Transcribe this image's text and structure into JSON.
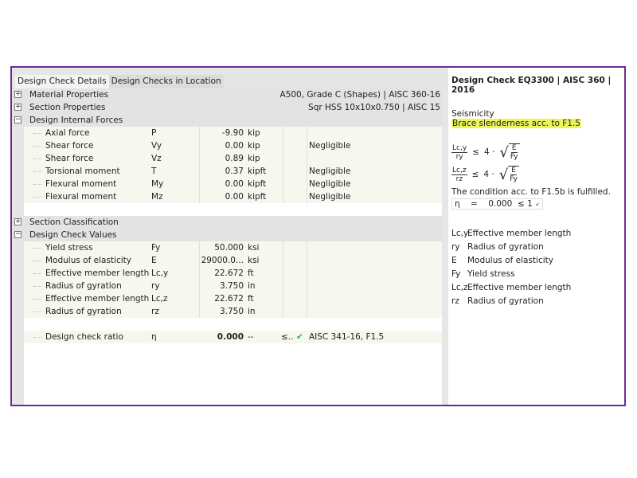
{
  "tabs": [
    "Design Check Details",
    "Design Checks in Location"
  ],
  "groups": {
    "material": {
      "label": "Material Properties",
      "value": "A500, Grade C (Shapes) | AISC 360-16"
    },
    "section": {
      "label": "Section Properties",
      "value": "Sqr HSS 10x10x0.750 | AISC 15"
    },
    "forces": {
      "label": "Design Internal Forces"
    },
    "classification": {
      "label": "Section Classification"
    },
    "checkvalues": {
      "label": "Design Check Values"
    }
  },
  "forces": [
    {
      "name": "Axial force",
      "symbol": "P",
      "value": "-9.90",
      "unit": "kip",
      "note": ""
    },
    {
      "name": "Shear force",
      "symbol": "Vy",
      "value": "0.00",
      "unit": "kip",
      "note": "Negligible"
    },
    {
      "name": "Shear force",
      "symbol": "Vz",
      "value": "0.89",
      "unit": "kip",
      "note": ""
    },
    {
      "name": "Torsional moment",
      "symbol": "T",
      "value": "0.37",
      "unit": "kipft",
      "note": "Negligible"
    },
    {
      "name": "Flexural moment",
      "symbol": "My",
      "value": "0.00",
      "unit": "kipft",
      "note": "Negligible"
    },
    {
      "name": "Flexural moment",
      "symbol": "Mz",
      "value": "0.00",
      "unit": "kipft",
      "note": "Negligible"
    }
  ],
  "checkvalues": [
    {
      "name": "Yield stress",
      "symbol": "Fy",
      "value": "50.000",
      "unit": "ksi"
    },
    {
      "name": "Modulus of elasticity",
      "symbol": "E",
      "value": "29000.0...",
      "unit": "ksi"
    },
    {
      "name": "Effective member length",
      "symbol": "Lc,y",
      "value": "22.672",
      "unit": "ft"
    },
    {
      "name": "Radius of gyration",
      "symbol": "ry",
      "value": "3.750",
      "unit": "in"
    },
    {
      "name": "Effective member length",
      "symbol": "Lc,z",
      "value": "22.672",
      "unit": "ft"
    },
    {
      "name": "Radius of gyration",
      "symbol": "rz",
      "value": "3.750",
      "unit": "in"
    }
  ],
  "ratio": {
    "name": "Design check ratio",
    "symbol": "η",
    "value": "0.000",
    "unit": "--",
    "le": "≤..",
    "check": "✔",
    "ref": "AISC 341-16, F1.5"
  },
  "right": {
    "title": "Design Check EQ3300 | AISC 360 | 2016",
    "category": "Seismicity",
    "check": "Brace slenderness acc. to F1.5",
    "f1": {
      "num": "Lc,y",
      "den": "ry",
      "op": "≤",
      "k": "4 ·",
      "sn": "E",
      "sd": "Fy"
    },
    "f2": {
      "num": "Lc,z",
      "den": "rz",
      "op": "≤",
      "k": "4 ·",
      "sn": "E",
      "sd": "Fy"
    },
    "condition": "The condition acc. to F1.5b is fulfilled.",
    "eta": {
      "sym": "η",
      "eq": "=",
      "val": "0.000",
      "le": "≤ 1",
      "check": "✔"
    },
    "legend": [
      {
        "sym": "Lc,y",
        "text": "Effective member length"
      },
      {
        "sym": "ry",
        "text": "Radius of gyration"
      },
      {
        "sym": "E",
        "text": "Modulus of elasticity"
      },
      {
        "sym": "Fy",
        "text": "Yield stress"
      },
      {
        "sym": "Lc,z",
        "text": "Effective member length"
      },
      {
        "sym": "rz",
        "text": "Radius of gyration"
      }
    ]
  },
  "colors": {
    "frame": "#6a2c91",
    "highlight": "#eaf55a",
    "check": "#2db52d"
  }
}
